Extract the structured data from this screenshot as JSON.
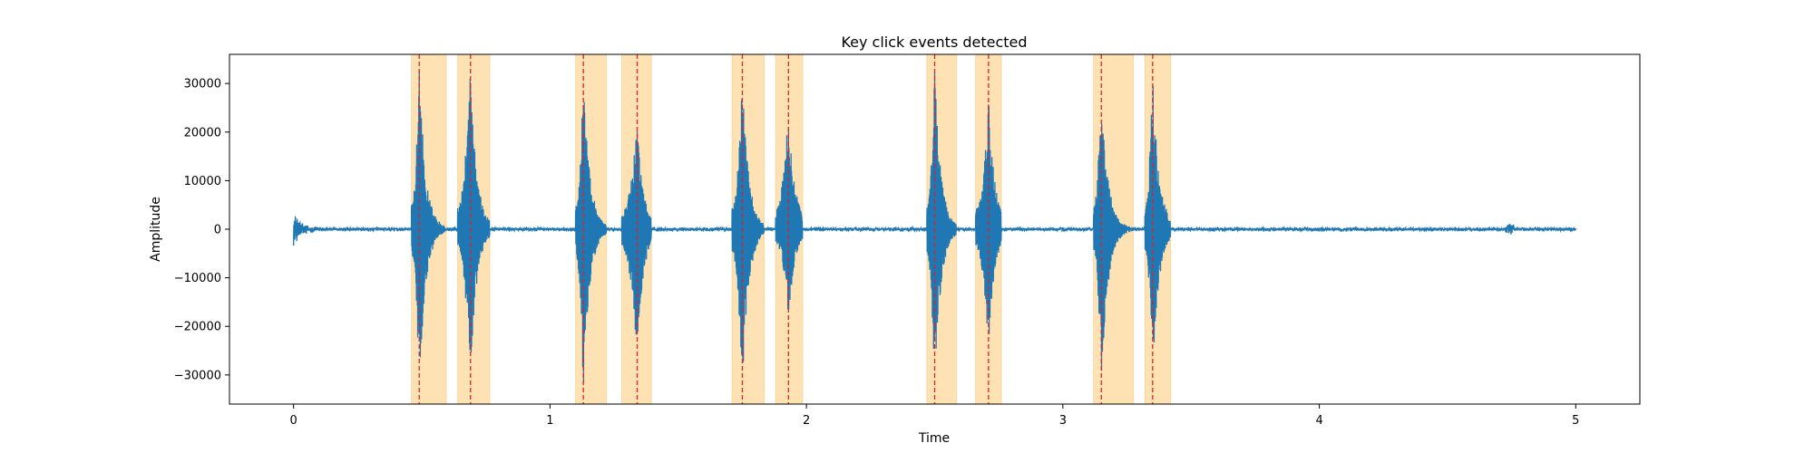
{
  "chart_data": {
    "type": "line",
    "title": "Key click events detected",
    "xlabel": "Time",
    "ylabel": "Amplitude",
    "xlim": [
      -0.25,
      5.25
    ],
    "ylim": [
      -36000,
      36000
    ],
    "xticks": [
      0,
      1,
      2,
      3,
      4,
      5
    ],
    "xtick_labels": [
      "0",
      "1",
      "2",
      "3",
      "4",
      "5"
    ],
    "yticks": [
      -30000,
      -20000,
      -10000,
      0,
      10000,
      20000,
      30000
    ],
    "ytick_labels": [
      "−30000",
      "−20000",
      "−10000",
      "0",
      "10000",
      "20000",
      "30000"
    ],
    "grid": false,
    "series": [
      {
        "x_start": 0.0,
        "x_end": 5.0,
        "baseline_noise_amplitude": 300,
        "onset_burst": {
          "time": 0.0,
          "peak": 3200,
          "duration": 0.12
        },
        "late_burst": {
          "time": 4.72,
          "peak": 1200,
          "duration": 0.05
        },
        "color": "#1f77b4"
      }
    ],
    "events": [
      {
        "time": 0.49,
        "window": [
          0.46,
          0.595
        ],
        "peak_positive": 33000,
        "peak_negative": -33000
      },
      {
        "time": 0.69,
        "window": [
          0.64,
          0.765
        ],
        "peak_positive": 33000,
        "peak_negative": -31000
      },
      {
        "time": 1.13,
        "window": [
          1.1,
          1.22
        ],
        "peak_positive": 33000,
        "peak_negative": -33000
      },
      {
        "time": 1.34,
        "window": [
          1.28,
          1.395
        ],
        "peak_positive": 22000,
        "peak_negative": -26000
      },
      {
        "time": 1.75,
        "window": [
          1.71,
          1.835
        ],
        "peak_positive": 32000,
        "peak_negative": -33000
      },
      {
        "time": 1.93,
        "window": [
          1.88,
          1.985
        ],
        "peak_positive": 26000,
        "peak_negative": -19000
      },
      {
        "time": 2.5,
        "window": [
          2.47,
          2.585
        ],
        "peak_positive": 33000,
        "peak_negative": -33000
      },
      {
        "time": 2.71,
        "window": [
          2.66,
          2.76
        ],
        "peak_positive": 27000,
        "peak_negative": -24000
      },
      {
        "time": 3.15,
        "window": [
          3.12,
          3.275
        ],
        "peak_positive": 32000,
        "peak_negative": -33000
      },
      {
        "time": 3.35,
        "window": [
          3.32,
          3.42
        ],
        "peak_positive": 33000,
        "peak_negative": -31000
      }
    ],
    "event_line_color": "#d62728",
    "event_window_color": "#ffe0b0",
    "event_window_edge": "#ffd59a"
  }
}
